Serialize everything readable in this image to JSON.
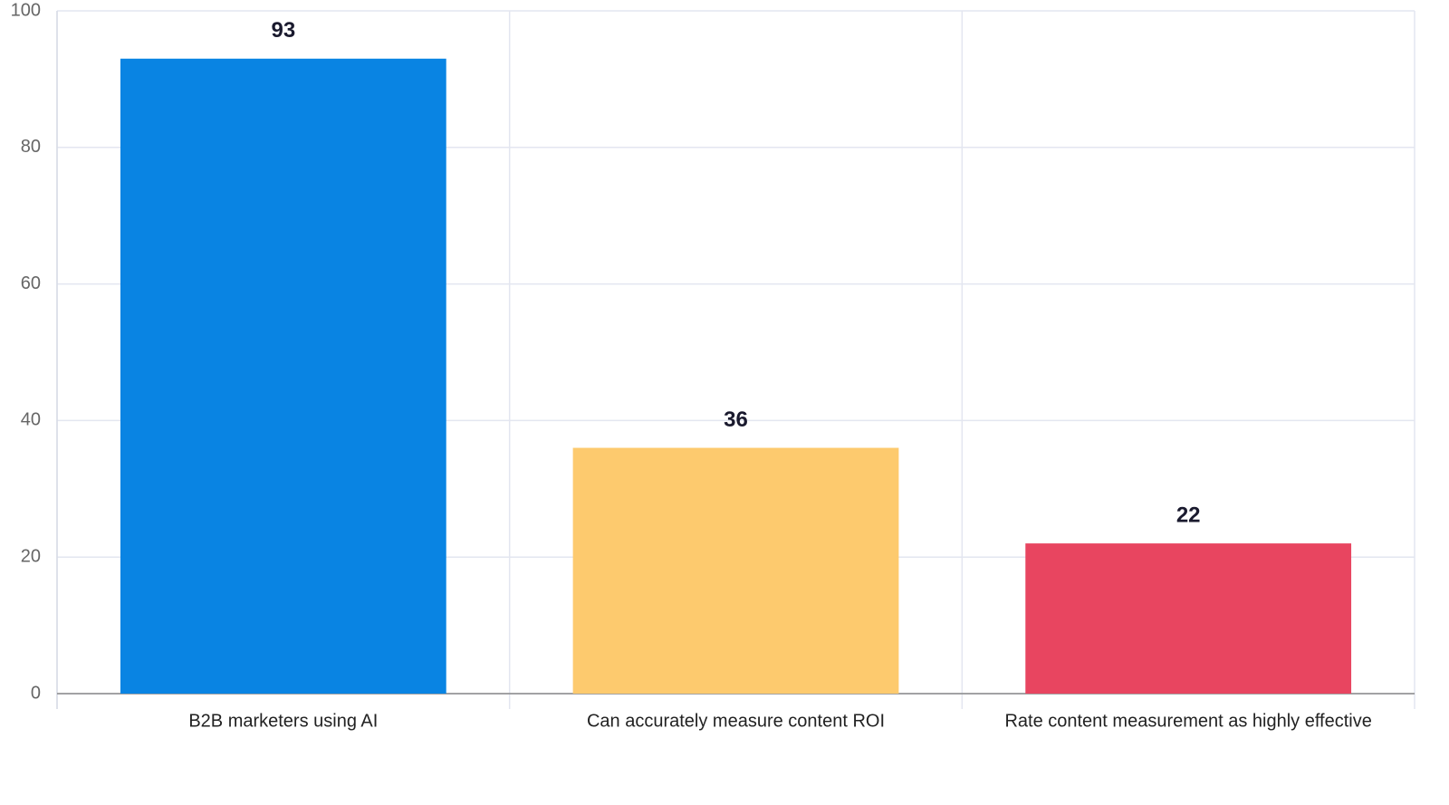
{
  "chart_data": {
    "type": "bar",
    "categories": [
      "B2B marketers using AI",
      "Can accurately measure content ROI",
      "Rate content measurement as highly effective"
    ],
    "values": [
      93,
      36,
      22
    ],
    "colors": [
      "#0984e3",
      "#fdca6e",
      "#e84560"
    ],
    "ylim": [
      0,
      100
    ],
    "yticks": [
      0,
      20,
      40,
      60,
      80,
      100
    ],
    "grid": true
  }
}
